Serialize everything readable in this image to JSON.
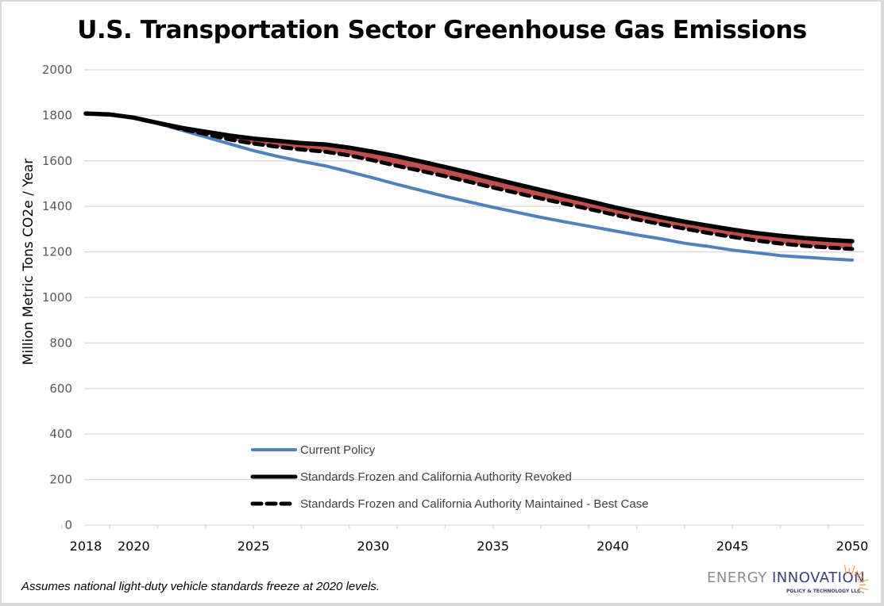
{
  "footnote": "Assumes national light-duty vehicle standards freeze at 2020 levels.",
  "logo": {
    "word1": "ENERGY",
    "word2": "INNOVATION",
    "subtitle": "POLICY & TECHNOLOGY LLC",
    "name": "sunburst-icon"
  },
  "colors": {
    "current_policy": "#4f81bd",
    "revoked": "#000000",
    "maintained": "#000000",
    "gap_fill": "#c0504d",
    "grid": "#d9d9d9",
    "logo_rays": "#f0a050"
  },
  "chart_data": {
    "type": "line",
    "title": "U.S. Transportation Sector Greenhouse Gas Emissions",
    "xlabel": "",
    "ylabel": "Million Metric Tons CO2e / Year",
    "xlim": [
      2018,
      2050
    ],
    "ylim": [
      0,
      2000
    ],
    "yticks": [
      0,
      200,
      400,
      600,
      800,
      1000,
      1200,
      1400,
      1600,
      1800,
      2000
    ],
    "xtick_labels": [
      "2018",
      "2020",
      "2025",
      "2030",
      "2035",
      "2040",
      "2045",
      "2050"
    ],
    "xtick_label_years": [
      2018,
      2020,
      2025,
      2030,
      2035,
      2040,
      2045,
      2050
    ],
    "grid": true,
    "legend_position": "lower-center inside plot",
    "x": [
      2018,
      2019,
      2020,
      2021,
      2022,
      2023,
      2024,
      2025,
      2026,
      2027,
      2028,
      2029,
      2030,
      2031,
      2032,
      2033,
      2034,
      2035,
      2036,
      2037,
      2038,
      2039,
      2040,
      2041,
      2042,
      2043,
      2044,
      2045,
      2046,
      2047,
      2048,
      2049,
      2050
    ],
    "series": [
      {
        "name": "Current Policy",
        "style": "solid-blue",
        "values": [
          1808,
          1804,
          1790,
          1765,
          1735,
          1705,
          1675,
          1645,
          1620,
          1598,
          1578,
          1552,
          1525,
          1497,
          1470,
          1444,
          1420,
          1396,
          1374,
          1352,
          1332,
          1313,
          1294,
          1275,
          1258,
          1238,
          1224,
          1208,
          1196,
          1184,
          1177,
          1170,
          1164
        ]
      },
      {
        "name": "Standards Frozen and California Authority Revoked",
        "style": "solid-black-thick",
        "values": [
          1808,
          1804,
          1790,
          1767,
          1745,
          1728,
          1711,
          1698,
          1688,
          1678,
          1672,
          1658,
          1640,
          1620,
          1597,
          1573,
          1548,
          1522,
          1497,
          1472,
          1447,
          1423,
          1398,
          1375,
          1353,
          1333,
          1315,
          1298,
          1283,
          1271,
          1261,
          1253,
          1247
        ]
      },
      {
        "name": "Standards Frozen and California Authority Maintained - Best Case",
        "style": "dashed-black",
        "values": [
          1808,
          1804,
          1790,
          1766,
          1740,
          1718,
          1694,
          1676,
          1662,
          1650,
          1640,
          1624,
          1602,
          1578,
          1556,
          1533,
          1508,
          1483,
          1459,
          1435,
          1412,
          1389,
          1365,
          1343,
          1322,
          1302,
          1283,
          1266,
          1250,
          1237,
          1227,
          1219,
          1213
        ]
      }
    ],
    "shaded_region": {
      "between": [
        "Standards Frozen and California Authority Revoked",
        "Standards Frozen and California Authority Maintained - Best Case"
      ],
      "color": "#c0504d"
    }
  }
}
